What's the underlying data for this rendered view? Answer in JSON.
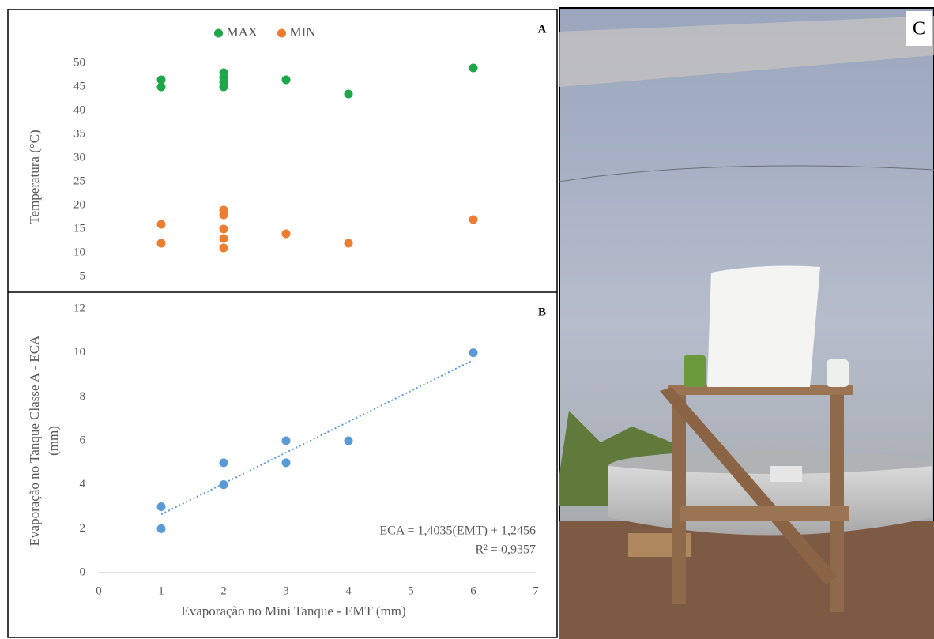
{
  "chart_data": [
    {
      "type": "scatter",
      "panel_label": "A",
      "ylabel": [
        "Temperatura (°C)"
      ],
      "xlim": [
        0,
        7
      ],
      "ylim": [
        2,
        50
      ],
      "yticks": [
        5,
        10,
        15,
        20,
        25,
        30,
        35,
        40,
        45,
        50
      ],
      "legend": "top-center",
      "series": [
        {
          "name": "MAX",
          "color": "#1ea64a",
          "x": [
            1,
            1,
            2,
            2,
            2,
            2,
            3,
            4,
            6
          ],
          "values": [
            46.5,
            45,
            48,
            47,
            46,
            45,
            46.5,
            43.5,
            49
          ]
        },
        {
          "name": "MIN",
          "color": "#ed7d31",
          "x": [
            1,
            1,
            2,
            2,
            2,
            2,
            2,
            3,
            4,
            6
          ],
          "values": [
            16,
            12,
            19,
            18,
            15,
            13,
            11,
            14,
            12,
            17
          ]
        }
      ]
    },
    {
      "type": "scatter",
      "panel_label": "B",
      "ylabel": [
        "Evaporação no Tanque Classe A - ECA",
        "(mm)"
      ],
      "xlabel": "Evaporação no Mini Tanque - EMT (mm)",
      "xlim": [
        0,
        7
      ],
      "xticks": [
        0,
        1,
        2,
        3,
        4,
        5,
        6,
        7
      ],
      "ylim": [
        0,
        12
      ],
      "yticks": [
        0,
        2,
        4,
        6,
        8,
        10,
        12
      ],
      "x_axis_line": true,
      "series": [
        {
          "color": "#5b9bd5",
          "x": [
            1,
            1,
            2,
            2,
            2,
            3,
            3,
            4,
            6
          ],
          "values": [
            3,
            2,
            5,
            4,
            4,
            6,
            5,
            6,
            10
          ]
        }
      ],
      "trendline": {
        "color": "#5b9bd5",
        "x": [
          1,
          6
        ],
        "values": [
          2.65,
          9.67
        ]
      },
      "annotations": [
        "ECA = 1,4035(EMT) + 1,2456",
        "R² = 0,9357"
      ]
    }
  ],
  "photo": {
    "panel_label": "C"
  }
}
